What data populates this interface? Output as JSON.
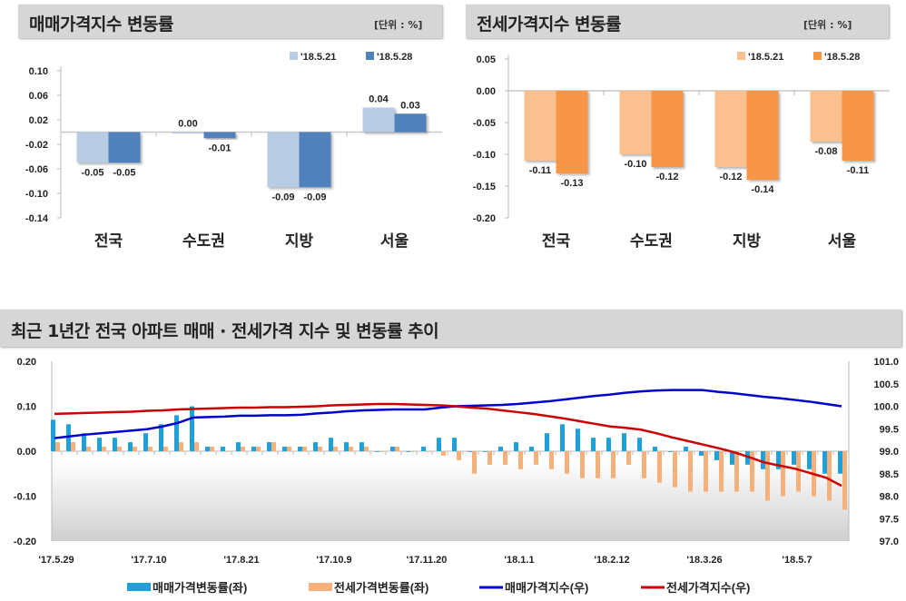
{
  "panels": [
    {
      "title": "매매가격지수 변동률",
      "unit": "[단위 : %]"
    },
    {
      "title": "전세가격지수 변동률",
      "unit": "[단위 : %]"
    },
    {
      "title": "최근 1년간 전국 아파트 매매 · 전세가격 지수 및 변동률 추이"
    }
  ],
  "chart_data": [
    {
      "type": "bar",
      "title": "매매가격지수 변동률",
      "unit": "[단위 : %]",
      "categories": [
        "전국",
        "수도권",
        "지방",
        "서울"
      ],
      "series": [
        {
          "name": "'18.5.21",
          "values": [
            -0.05,
            0.0,
            -0.09,
            0.04
          ],
          "color": "#b8cce4"
        },
        {
          "name": "'18.5.28",
          "values": [
            -0.05,
            -0.01,
            -0.09,
            0.03
          ],
          "color": "#4f81bd"
        }
      ],
      "yticks": [
        "0.10",
        "0.06",
        "0.02",
        "-0.02",
        "-0.06",
        "-0.10",
        "-0.14"
      ],
      "ylim": [
        -0.14,
        0.1
      ],
      "legend": "top-right",
      "grid": false
    },
    {
      "type": "bar",
      "title": "전세가격지수 변동률",
      "unit": "[단위 : %]",
      "categories": [
        "전국",
        "수도권",
        "지방",
        "서울"
      ],
      "series": [
        {
          "name": "'18.5.21",
          "values": [
            -0.11,
            -0.1,
            -0.12,
            -0.08
          ],
          "color": "#fac090"
        },
        {
          "name": "'18.5.28",
          "values": [
            -0.13,
            -0.12,
            -0.14,
            -0.11
          ],
          "color": "#f79646"
        }
      ],
      "yticks": [
        "0.05",
        "0.00",
        "-0.05",
        "-0.10",
        "-0.15",
        "-0.20"
      ],
      "ylim": [
        -0.2,
        0.05
      ],
      "legend": "top-right",
      "grid": false
    },
    {
      "type": "bar+line",
      "title": "최근 1년간 전국 아파트 매매 · 전세가격 지수 및 변동률 추이",
      "xticks": [
        "'17.5.29",
        "'17.7.10",
        "'17.8.21",
        "'17.10.9",
        "'17.11.20",
        "'18.1.1",
        "'18.2.12",
        "'18.3.26",
        "'18.5.7"
      ],
      "left_yticks": [
        "0.20",
        "0.10",
        "0.00",
        "-0.10",
        "-0.20"
      ],
      "left_ylim": [
        -0.2,
        0.2
      ],
      "right_yticks": [
        "101.0",
        "100.5",
        "100.0",
        "99.5",
        "99.0",
        "98.5",
        "98.0",
        "97.5",
        "97.0"
      ],
      "right_ylim": [
        97.0,
        101.0
      ],
      "legend": "bottom",
      "grid": false,
      "series": [
        {
          "name": "매매가격변동률(좌)",
          "type": "bar",
          "axis": "left",
          "color": "#1fa0d8",
          "values": [
            0.07,
            0.06,
            0.04,
            0.03,
            0.03,
            0.02,
            0.04,
            0.06,
            0.08,
            0.1,
            0.01,
            0.01,
            0.02,
            0.01,
            0.02,
            0.01,
            0.01,
            0.02,
            0.03,
            0.02,
            0.02,
            0.0,
            0.01,
            0.0,
            0.01,
            0.03,
            0.03,
            0.0,
            0.0,
            0.01,
            0.02,
            0.01,
            0.04,
            0.06,
            0.05,
            0.03,
            0.03,
            0.04,
            0.03,
            0.01,
            0.0,
            0.01,
            -0.01,
            -0.02,
            -0.03,
            -0.03,
            -0.04,
            -0.04,
            -0.03,
            -0.04,
            -0.05,
            -0.05
          ]
        },
        {
          "name": "전세가격변동률(좌)",
          "type": "bar",
          "axis": "left",
          "color": "#f6b07a",
          "values": [
            0.02,
            0.02,
            0.01,
            0.01,
            0.01,
            0.01,
            0.01,
            0.01,
            0.02,
            0.02,
            0.01,
            0.0,
            0.01,
            0.01,
            0.02,
            0.01,
            0.01,
            0.01,
            0.01,
            0.01,
            0.01,
            0.0,
            0.01,
            0.0,
            0.0,
            -0.01,
            -0.02,
            -0.05,
            -0.03,
            -0.03,
            -0.04,
            -0.03,
            -0.04,
            -0.05,
            -0.06,
            -0.06,
            -0.06,
            -0.03,
            -0.06,
            -0.07,
            -0.08,
            -0.09,
            -0.09,
            -0.09,
            -0.09,
            -0.09,
            -0.11,
            -0.1,
            -0.09,
            -0.1,
            -0.11,
            -0.13
          ]
        },
        {
          "name": "매매가격지수(우)",
          "type": "line",
          "axis": "right",
          "color": "#0000cc",
          "values": [
            99.29,
            99.33,
            99.37,
            99.4,
            99.43,
            99.46,
            99.49,
            99.55,
            99.63,
            99.75,
            99.76,
            99.77,
            99.79,
            99.79,
            99.8,
            99.8,
            99.81,
            99.84,
            99.86,
            99.89,
            99.91,
            99.92,
            99.93,
            99.93,
            99.93,
            99.97,
            100.0,
            100.01,
            100.02,
            100.03,
            100.05,
            100.08,
            100.11,
            100.15,
            100.19,
            100.23,
            100.26,
            100.3,
            100.33,
            100.35,
            100.36,
            100.36,
            100.36,
            100.32,
            100.29,
            100.25,
            100.21,
            100.18,
            100.14,
            100.1,
            100.05,
            100.0
          ]
        },
        {
          "name": "전세가격지수(우)",
          "type": "line",
          "axis": "right",
          "color": "#cc0000",
          "values": [
            99.83,
            99.84,
            99.85,
            99.86,
            99.87,
            99.88,
            99.9,
            99.91,
            99.93,
            99.94,
            99.95,
            99.96,
            99.97,
            99.97,
            99.98,
            99.98,
            99.99,
            100.0,
            100.02,
            100.03,
            100.04,
            100.05,
            100.05,
            100.04,
            100.03,
            100.02,
            100.0,
            99.97,
            99.95,
            99.91,
            99.87,
            99.83,
            99.78,
            99.73,
            99.67,
            99.61,
            99.55,
            99.52,
            99.48,
            99.4,
            99.31,
            99.23,
            99.15,
            99.07,
            98.98,
            98.87,
            98.75,
            98.68,
            98.61,
            98.51,
            98.41,
            98.23
          ]
        }
      ]
    }
  ]
}
